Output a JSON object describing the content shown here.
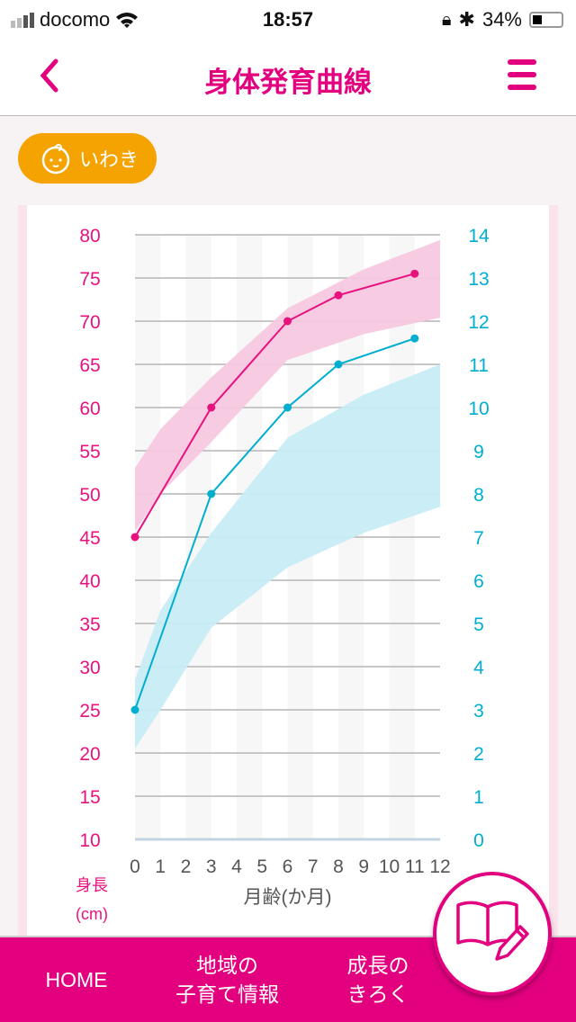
{
  "status": {
    "carrier": "docomo",
    "time": "18:57",
    "battery": "34%",
    "battery_level": 0.34
  },
  "header": {
    "title": "身体発育曲線"
  },
  "child": {
    "name": "いわき"
  },
  "colors": {
    "accent": "#e2007f",
    "height": "#e8127f",
    "weight": "#00aed0",
    "height_band": "#f7c9e0",
    "weight_band": "#c8ecf5",
    "chip": "#f5a300"
  },
  "chart_data": {
    "type": "line",
    "x": [
      0,
      3,
      6,
      8,
      11
    ],
    "xticks": [
      0,
      1,
      2,
      3,
      4,
      5,
      6,
      7,
      8,
      9,
      10,
      11,
      12
    ],
    "xlim": [
      0,
      12
    ],
    "xlabel": "月齢(か月)",
    "ylabel_left": "身長",
    "ylabel_left_unit": "(cm)",
    "ylim_left": [
      10,
      80
    ],
    "yticks_left": [
      10,
      15,
      20,
      25,
      30,
      35,
      40,
      45,
      50,
      55,
      60,
      65,
      70,
      75,
      80
    ],
    "ylim_right": [
      0,
      14
    ],
    "yticks_right": [
      0,
      1,
      2,
      3,
      4,
      5,
      6,
      7,
      8,
      9,
      10,
      11,
      12,
      13,
      14
    ],
    "series": [
      {
        "name": "height",
        "axis": "left",
        "values": [
          45,
          60,
          70,
          73,
          75.5
        ]
      },
      {
        "name": "weight",
        "axis": "right",
        "values": [
          3,
          8,
          10,
          11,
          11.6
        ]
      }
    ],
    "bands": [
      {
        "name": "height-range",
        "axis": "left",
        "x": [
          0,
          1,
          3,
          6,
          9,
          12
        ],
        "upper": [
          53,
          57.5,
          63.5,
          71.5,
          76,
          79.4
        ],
        "lower": [
          45.7,
          50,
          56,
          65.5,
          68.5,
          70.4
        ]
      },
      {
        "name": "weight-range",
        "axis": "right",
        "x": [
          0,
          1,
          3,
          6,
          9,
          12
        ],
        "upper": [
          3.7,
          5.3,
          7.1,
          9.3,
          10.3,
          11
        ],
        "lower": [
          2.1,
          3,
          4.9,
          6.3,
          7.1,
          7.7
        ]
      }
    ]
  },
  "nav": {
    "home": "HOME",
    "local_line1": "地域の",
    "local_line2": "子育て情報",
    "record_line1": "成長の",
    "record_line2": "きろく"
  }
}
